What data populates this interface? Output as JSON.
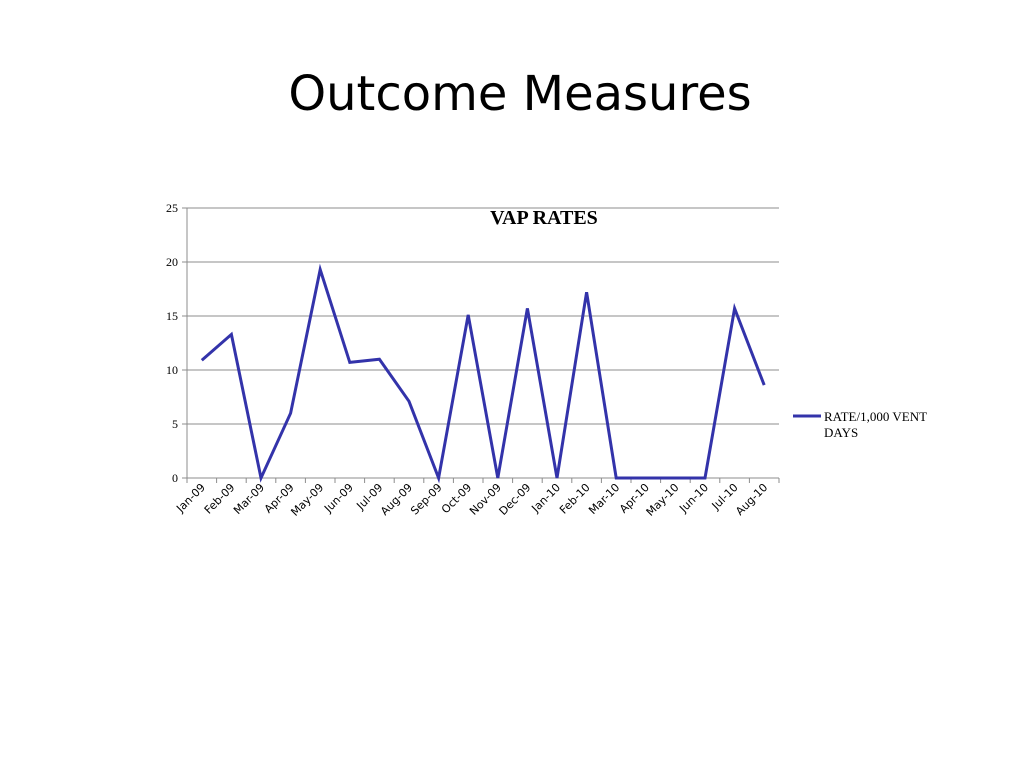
{
  "slide": {
    "title": "Outcome Measures"
  },
  "chart_data": {
    "type": "line",
    "title": "VAP RATES",
    "xlabel": "",
    "ylabel": "",
    "categories": [
      "Jan-09",
      "Feb-09",
      "Mar-09",
      "Apr-09",
      "May-09",
      "Jun-09",
      "Jul-09",
      "Aug-09",
      "Sep-09",
      "Oct-09",
      "Nov-09",
      "Dec-09",
      "Jan-10",
      "Feb-10",
      "Mar-10",
      "Apr-10",
      "May-10",
      "Jun-10",
      "Jul-10",
      "Aug-10"
    ],
    "series": [
      {
        "name": "RATE/1,000 VENT DAYS",
        "name_lines": [
          "RATE/1,000 VENT",
          "DAYS"
        ],
        "color": "#3333AA",
        "values": [
          10.9,
          13.3,
          0,
          6.0,
          19.3,
          10.7,
          11.0,
          7.1,
          0,
          15.1,
          0,
          15.7,
          0,
          17.2,
          0,
          0,
          0,
          0,
          15.7,
          8.6
        ]
      }
    ],
    "ylim": [
      0,
      25
    ],
    "yticks": [
      0,
      5,
      10,
      15,
      20,
      25
    ],
    "grid": true,
    "legend_position": "right"
  }
}
